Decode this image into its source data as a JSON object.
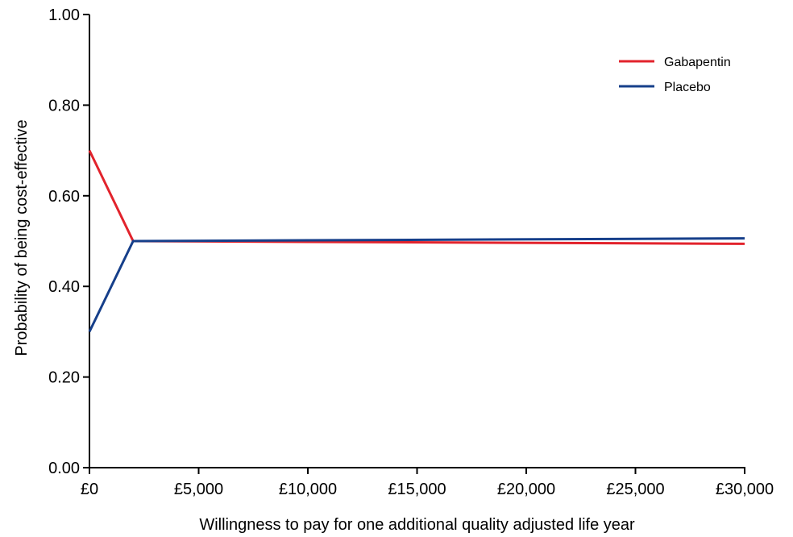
{
  "chart_data": {
    "type": "line",
    "title": "",
    "xlabel": "Willingness to pay for one additional quality adjusted life year",
    "ylabel": "Probability of being cost-effective",
    "xlim": [
      0,
      30000
    ],
    "ylim": [
      0,
      1
    ],
    "x_ticks": [
      0,
      5000,
      10000,
      15000,
      20000,
      25000,
      30000
    ],
    "x_tick_labels": [
      "£0",
      "£5,000",
      "£10,000",
      "£15,000",
      "£20,000",
      "£25,000",
      "£30,000"
    ],
    "y_ticks": [
      0,
      0.2,
      0.4,
      0.6,
      0.8,
      1.0
    ],
    "y_tick_labels": [
      "0.00",
      "0.20",
      "0.40",
      "0.60",
      "0.80",
      "1.00"
    ],
    "grid": false,
    "legend_position": "top-right",
    "series": [
      {
        "name": "Gabapentin",
        "color": "#e2232c",
        "x": [
          0,
          2000,
          30000
        ],
        "y": [
          0.7,
          0.5,
          0.494
        ]
      },
      {
        "name": "Placebo",
        "color": "#163f8a",
        "x": [
          0,
          2000,
          30000
        ],
        "y": [
          0.3,
          0.5,
          0.506
        ]
      }
    ]
  }
}
